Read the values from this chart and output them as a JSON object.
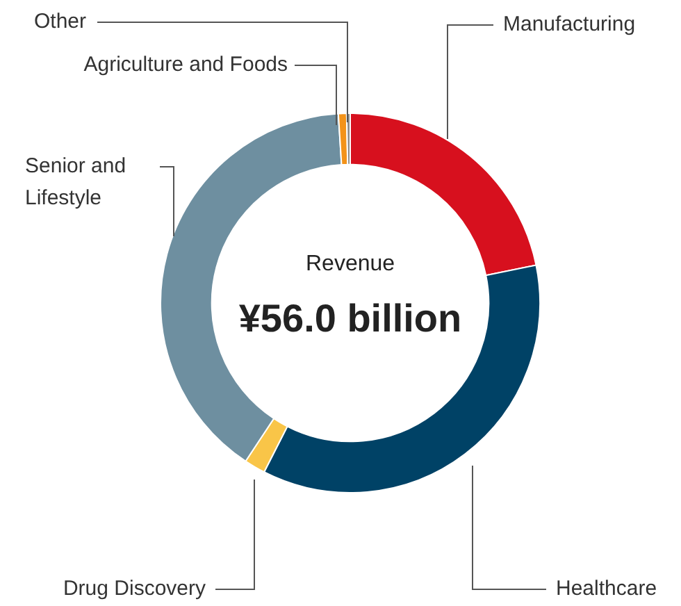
{
  "chart_data": {
    "type": "donut",
    "categories": [
      "Manufacturing",
      "Healthcare",
      "Drug Discovery",
      "Senior and Lifestyle",
      "Agriculture and Foods",
      "Other"
    ],
    "values": [
      21.8,
      35.7,
      1.8,
      39.7,
      0.7,
      0.3
    ],
    "colors": [
      "#d7101e",
      "#004266",
      "#f9c548",
      "#6e8fa0",
      "#f3931a",
      "#8a8a8a"
    ],
    "annotations": [
      "Revenue",
      "¥56.0 billion"
    ],
    "legend": false
  }
}
